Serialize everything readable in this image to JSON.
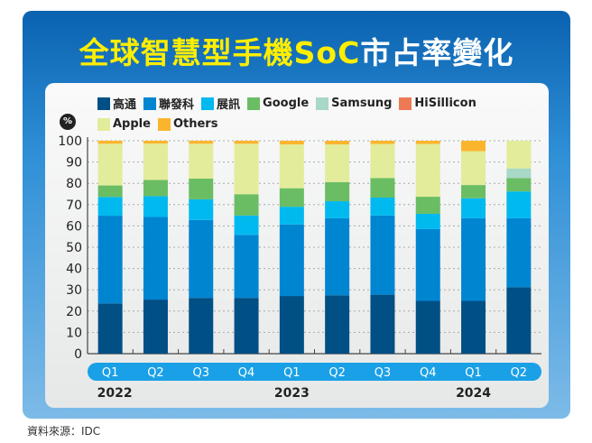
{
  "title": {
    "part1": "全球智慧型手機SoC",
    "part2": "市占率變化"
  },
  "source": "資料來源：IDC",
  "chart_data": {
    "type": "bar",
    "stacked": true,
    "ylabel": "%",
    "ylim": [
      0,
      100
    ],
    "yticks": [
      0,
      10,
      20,
      30,
      40,
      50,
      60,
      70,
      80,
      90,
      100
    ],
    "grid": true,
    "legend_placement": "top",
    "categories": [
      "Q1",
      "Q2",
      "Q3",
      "Q4",
      "Q1",
      "Q2",
      "Q3",
      "Q4",
      "Q1",
      "Q2"
    ],
    "years": [
      {
        "label": "2022",
        "quarters": [
          0,
          3
        ]
      },
      {
        "label": "2023",
        "quarters": [
          4,
          7
        ]
      },
      {
        "label": "2024",
        "quarters": [
          8,
          9
        ]
      }
    ],
    "series": [
      {
        "name": "高通",
        "color": "#004f85",
        "values": [
          23.6,
          25.4,
          26.2,
          26.2,
          27.1,
          27.4,
          27.7,
          24.8,
          24.8,
          31.2
        ]
      },
      {
        "name": "聯發科",
        "color": "#0085d1",
        "values": [
          41.2,
          38.8,
          36.6,
          29.6,
          33.6,
          36.2,
          37.2,
          33.7,
          38.8,
          32.4
        ]
      },
      {
        "name": "展訊",
        "color": "#00b9ef",
        "values": [
          8.8,
          9.8,
          9.7,
          9.1,
          8.3,
          8.0,
          8.4,
          7.2,
          9.4,
          12.6
        ]
      },
      {
        "name": "Google",
        "color": "#6abd63",
        "values": [
          5.4,
          7.6,
          9.7,
          10.0,
          8.7,
          9.0,
          9.2,
          8.0,
          6.2,
          6.3
        ]
      },
      {
        "name": "Samsung",
        "color": "#a8d8c6",
        "values": [
          0,
          0,
          0,
          0,
          0,
          0,
          0,
          0,
          0,
          4.5
        ]
      },
      {
        "name": "HiSillicon",
        "color": "#ee7a55",
        "values": [
          0,
          0,
          0,
          0,
          0,
          0,
          0,
          0,
          0,
          0
        ]
      },
      {
        "name": "Apple",
        "color": "#e3ec9a",
        "values": [
          19.6,
          17.1,
          16.4,
          23.7,
          20.6,
          17.7,
          16.0,
          24.8,
          15.9,
          13.0
        ]
      },
      {
        "name": "Others",
        "color": "#fbb52d",
        "values": [
          1.4,
          1.3,
          1.4,
          1.4,
          1.7,
          1.7,
          1.5,
          1.5,
          4.9,
          0
        ]
      }
    ]
  }
}
